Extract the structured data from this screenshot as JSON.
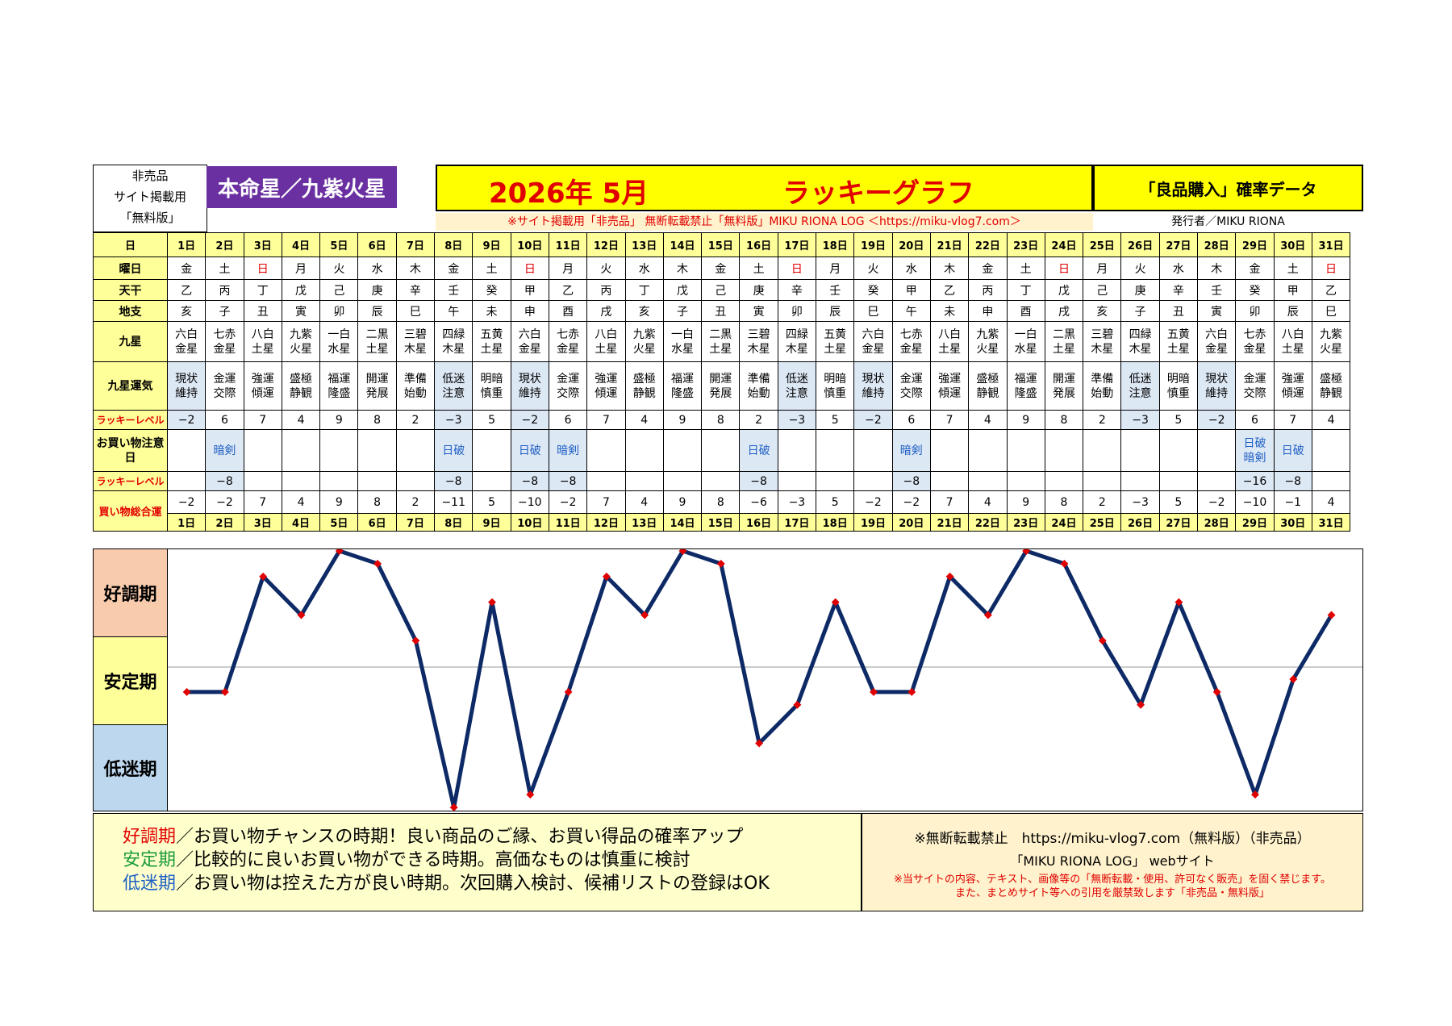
{
  "header": {
    "left_lines": [
      "非売品",
      "サイト掲載用",
      "「無料版」"
    ],
    "honmei": "本命星／九紫火星",
    "title_date": "2026年 5月",
    "title_text": "ラッキーグラフ",
    "right_title": "「良品購入」確率データ",
    "notice": "※サイト掲載用「非売品」 無断転載禁止「無料版」MIKU RIONA LOG ＜https://miku-vlog7.com＞",
    "publisher": "発行者／MIKU RIONA"
  },
  "row_labels": {
    "day": "日",
    "weekday": "曜日",
    "tenkan": "天干",
    "chishi": "地支",
    "kyusei": "九星",
    "kyusei_unki": "九星運気",
    "lucky_level": "ラッキーレベル",
    "shopping_caution": "お買い物注意日",
    "lucky_level2": "ラッキーレベル",
    "shopping_total": "買い物総合運"
  },
  "days": [
    "1日",
    "2日",
    "3日",
    "4日",
    "5日",
    "6日",
    "7日",
    "8日",
    "9日",
    "10日",
    "11日",
    "12日",
    "13日",
    "14日",
    "15日",
    "16日",
    "17日",
    "18日",
    "19日",
    "20日",
    "21日",
    "22日",
    "23日",
    "24日",
    "25日",
    "26日",
    "27日",
    "28日",
    "29日",
    "30日",
    "31日"
  ],
  "weekdays": [
    "金",
    "土",
    "日",
    "月",
    "火",
    "水",
    "木",
    "金",
    "土",
    "日",
    "月",
    "火",
    "水",
    "木",
    "金",
    "土",
    "日",
    "月",
    "火",
    "水",
    "木",
    "金",
    "土",
    "日",
    "月",
    "火",
    "水",
    "木",
    "金",
    "土",
    "日"
  ],
  "tenkan": [
    "乙",
    "丙",
    "丁",
    "戊",
    "己",
    "庚",
    "辛",
    "壬",
    "癸",
    "甲",
    "乙",
    "丙",
    "丁",
    "戊",
    "己",
    "庚",
    "辛",
    "壬",
    "癸",
    "甲",
    "乙",
    "丙",
    "丁",
    "戊",
    "己",
    "庚",
    "辛",
    "壬",
    "癸",
    "甲",
    "乙"
  ],
  "chishi": [
    "亥",
    "子",
    "丑",
    "寅",
    "卯",
    "辰",
    "巳",
    "午",
    "未",
    "申",
    "酉",
    "戌",
    "亥",
    "子",
    "丑",
    "寅",
    "卯",
    "辰",
    "巳",
    "午",
    "未",
    "申",
    "酉",
    "戌",
    "亥",
    "子",
    "丑",
    "寅",
    "卯",
    "辰",
    "巳"
  ],
  "kyusei": [
    [
      "六白",
      "金星"
    ],
    [
      "七赤",
      "金星"
    ],
    [
      "八白",
      "土星"
    ],
    [
      "九紫",
      "火星"
    ],
    [
      "一白",
      "水星"
    ],
    [
      "二黒",
      "土星"
    ],
    [
      "三碧",
      "木星"
    ],
    [
      "四緑",
      "木星"
    ],
    [
      "五黄",
      "土星"
    ],
    [
      "六白",
      "金星"
    ],
    [
      "七赤",
      "金星"
    ],
    [
      "八白",
      "土星"
    ],
    [
      "九紫",
      "火星"
    ],
    [
      "一白",
      "水星"
    ],
    [
      "二黒",
      "土星"
    ],
    [
      "三碧",
      "木星"
    ],
    [
      "四緑",
      "木星"
    ],
    [
      "五黄",
      "土星"
    ],
    [
      "六白",
      "金星"
    ],
    [
      "七赤",
      "金星"
    ],
    [
      "八白",
      "土星"
    ],
    [
      "九紫",
      "火星"
    ],
    [
      "一白",
      "水星"
    ],
    [
      "二黒",
      "土星"
    ],
    [
      "三碧",
      "木星"
    ],
    [
      "四緑",
      "木星"
    ],
    [
      "五黄",
      "土星"
    ],
    [
      "六白",
      "金星"
    ],
    [
      "七赤",
      "金星"
    ],
    [
      "八白",
      "土星"
    ],
    [
      "九紫",
      "火星"
    ]
  ],
  "unki": [
    [
      "現状",
      "維持"
    ],
    [
      "金運",
      "交際"
    ],
    [
      "強運",
      "傾運"
    ],
    [
      "盛極",
      "静観"
    ],
    [
      "福運",
      "隆盛"
    ],
    [
      "開運",
      "発展"
    ],
    [
      "準備",
      "始動"
    ],
    [
      "低迷",
      "注意"
    ],
    [
      "明暗",
      "慎重"
    ],
    [
      "現状",
      "維持"
    ],
    [
      "金運",
      "交際"
    ],
    [
      "強運",
      "傾運"
    ],
    [
      "盛極",
      "静観"
    ],
    [
      "福運",
      "隆盛"
    ],
    [
      "開運",
      "発展"
    ],
    [
      "準備",
      "始動"
    ],
    [
      "低迷",
      "注意"
    ],
    [
      "明暗",
      "慎重"
    ],
    [
      "現状",
      "維持"
    ],
    [
      "金運",
      "交際"
    ],
    [
      "強運",
      "傾運"
    ],
    [
      "盛極",
      "静観"
    ],
    [
      "福運",
      "隆盛"
    ],
    [
      "開運",
      "発展"
    ],
    [
      "準備",
      "始動"
    ],
    [
      "低迷",
      "注意"
    ],
    [
      "明暗",
      "慎重"
    ],
    [
      "現状",
      "維持"
    ],
    [
      "金運",
      "交際"
    ],
    [
      "強運",
      "傾運"
    ],
    [
      "盛極",
      "静観"
    ]
  ],
  "lucky_level": [
    "−2",
    "6",
    "7",
    "4",
    "9",
    "8",
    "2",
    "−3",
    "5",
    "−2",
    "6",
    "7",
    "4",
    "9",
    "8",
    "2",
    "−3",
    "5",
    "−2",
    "6",
    "7",
    "4",
    "9",
    "8",
    "2",
    "−3",
    "5",
    "−2",
    "6",
    "7",
    "4"
  ],
  "caution": [
    [],
    [
      "暗剣"
    ],
    [],
    [],
    [],
    [],
    [],
    [
      "日破"
    ],
    [],
    [
      "日破"
    ],
    [
      "暗剣"
    ],
    [],
    [],
    [],
    [],
    [
      "日破"
    ],
    [],
    [],
    [],
    [
      "暗剣"
    ],
    [],
    [],
    [],
    [],
    [],
    [],
    [],
    [],
    [
      "日破",
      "暗剣"
    ],
    [
      "日破"
    ],
    []
  ],
  "lucky_level2": [
    "",
    "−8",
    "",
    "",
    "",
    "",
    "",
    "−8",
    "",
    "−8",
    "−8",
    "",
    "",
    "",
    "",
    "−8",
    "",
    "",
    "",
    "−8",
    "",
    "",
    "",
    "",
    "",
    "",
    "",
    "",
    "−16",
    "−8",
    ""
  ],
  "total": [
    "−2",
    "−2",
    "7",
    "4",
    "9",
    "8",
    "2",
    "−11",
    "5",
    "−10",
    "−2",
    "7",
    "4",
    "9",
    "8",
    "−6",
    "−3",
    "5",
    "−2",
    "−2",
    "7",
    "4",
    "9",
    "8",
    "2",
    "−3",
    "5",
    "−2",
    "−10",
    "−1",
    "4"
  ],
  "chart_data": {
    "type": "line",
    "x": [
      1,
      2,
      3,
      4,
      5,
      6,
      7,
      8,
      9,
      10,
      11,
      12,
      13,
      14,
      15,
      16,
      17,
      18,
      19,
      20,
      21,
      22,
      23,
      24,
      25,
      26,
      27,
      28,
      29,
      30,
      31
    ],
    "values": [
      -2,
      -2,
      7,
      4,
      9,
      8,
      2,
      -11,
      5,
      -10,
      -2,
      7,
      4,
      9,
      8,
      -6,
      -3,
      5,
      -2,
      -2,
      7,
      4,
      9,
      8,
      2,
      -3,
      5,
      -2,
      -10,
      -1,
      4
    ],
    "ylim": [
      -11,
      9
    ],
    "bands": [
      "好調期",
      "安定期",
      "低迷期"
    ],
    "line_color": "#0d2a66",
    "marker_color": "#e00000"
  },
  "footer": {
    "lines": [
      {
        "term": "好調期",
        "color": "#e00000",
        "text": "／お買い物チャンスの時期！良い商品のご縁、お買い得品の確率アップ"
      },
      {
        "term": "安定期",
        "color": "#1a9a3a",
        "text": "／比較的に良いお買い物ができる時期。高価なものは慎重に検討"
      },
      {
        "term": "低迷期",
        "color": "#1f5fc4",
        "text": "／お買い物は控えた方が良い時期。次回購入検討、候補リストの登録はOK"
      }
    ],
    "right_line1": "※無断転載禁止　https://miku-vlog7.com（無料版）（非売品）",
    "right_line2": "「MIKU RIONA LOG」 webサイト",
    "right_line3": "※当サイトの内容、テキスト、画像等の「無断転載・使用、許可なく販売」を固く禁じます。",
    "right_line4": "また、まとめサイト等への引用を厳禁致します「非売品・無料版」"
  }
}
